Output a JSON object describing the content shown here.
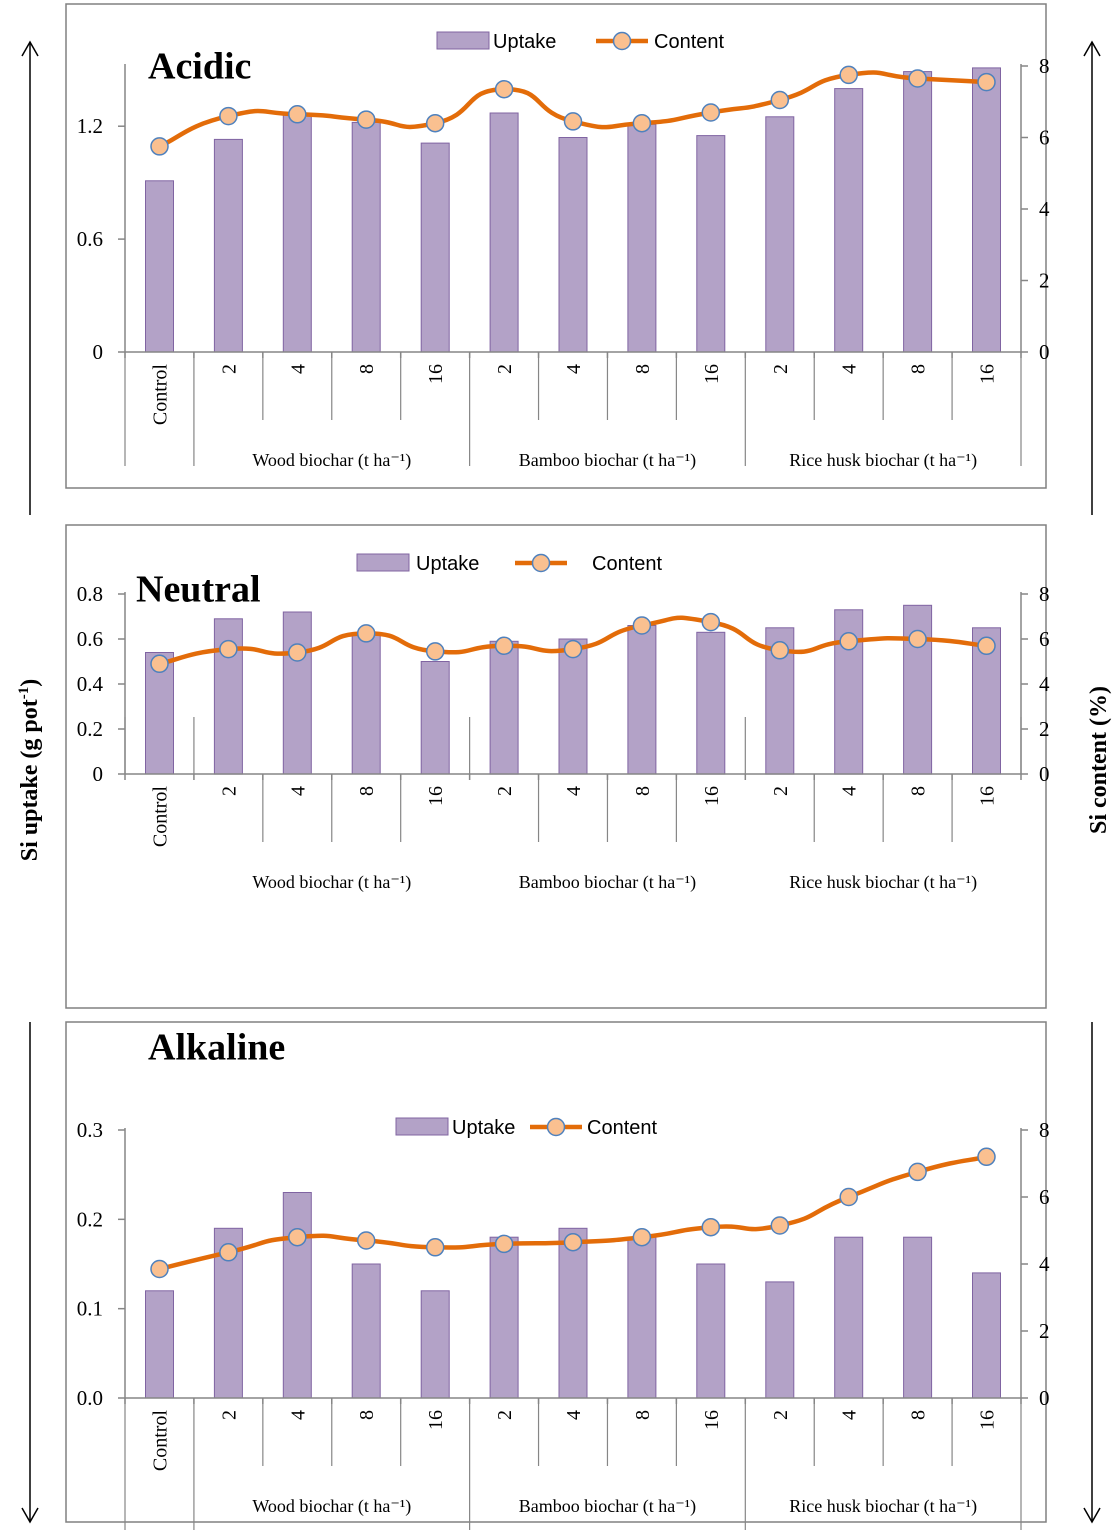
{
  "figure": {
    "left_axis_label": "Si uptake (g pot",
    "left_axis_sup": "-1",
    "left_axis_close": ")",
    "right_axis_label": "Si content (%)",
    "legend_uptake": "Uptake",
    "legend_content": "Content",
    "colors": {
      "bar_fill": "#b3a2c7",
      "bar_stroke": "#8064a2",
      "line": "#e36c09",
      "marker_fill": "#fac090",
      "marker_stroke": "#4f81bd"
    }
  },
  "chart_data": [
    {
      "type": "bar",
      "title": "Acidic",
      "categories": [
        "Control",
        "2",
        "4",
        "8",
        "16",
        "2",
        "4",
        "8",
        "16",
        "2",
        "4",
        "8",
        "16"
      ],
      "groups": [
        {
          "label": "",
          "span": 1
        },
        {
          "label": "Wood biochar (t ha⁻¹)",
          "span": 4
        },
        {
          "label": "Bamboo biochar (t ha⁻¹)",
          "span": 4
        },
        {
          "label": "Rice husk biochar (t ha⁻¹)",
          "span": 4
        }
      ],
      "series": [
        {
          "name": "Uptake",
          "axis": "left",
          "values": [
            0.91,
            1.13,
            1.26,
            1.22,
            1.11,
            1.27,
            1.14,
            1.21,
            1.15,
            1.25,
            1.4,
            1.49,
            1.51
          ]
        },
        {
          "name": "Content",
          "axis": "right",
          "values": [
            5.75,
            6.6,
            6.65,
            6.5,
            6.4,
            7.35,
            6.45,
            6.4,
            6.7,
            7.05,
            7.75,
            7.65,
            7.55
          ]
        }
      ],
      "left_ticks": [
        "0",
        "0.6",
        "1.2"
      ],
      "left_tick_values": [
        0,
        0.6,
        1.2
      ],
      "ylim_left": [
        0,
        1.52
      ],
      "right_ticks": [
        "0",
        "2",
        "4",
        "6",
        "8"
      ],
      "right_tick_values": [
        0,
        2,
        4,
        6,
        8
      ],
      "ylim_right": [
        0,
        8
      ]
    },
    {
      "type": "bar",
      "title": "Neutral",
      "categories": [
        "Control",
        "2",
        "4",
        "8",
        "16",
        "2",
        "4",
        "8",
        "16",
        "2",
        "4",
        "8",
        "16"
      ],
      "groups": [
        {
          "label": "",
          "span": 1
        },
        {
          "label": "Wood biochar (t ha⁻¹)",
          "span": 4
        },
        {
          "label": "Bamboo biochar (t ha⁻¹)",
          "span": 4
        },
        {
          "label": "Rice husk biochar (t ha⁻¹)",
          "span": 4
        }
      ],
      "series": [
        {
          "name": "Uptake",
          "axis": "left",
          "values": [
            0.54,
            0.69,
            0.72,
            0.62,
            0.5,
            0.59,
            0.6,
            0.66,
            0.63,
            0.65,
            0.73,
            0.75,
            0.65
          ]
        },
        {
          "name": "Content",
          "axis": "right",
          "values": [
            4.9,
            5.55,
            5.4,
            6.25,
            5.45,
            5.7,
            5.55,
            6.6,
            6.75,
            5.5,
            5.9,
            6.0,
            5.7
          ]
        }
      ],
      "left_ticks": [
        "0",
        "0.2",
        "0.4",
        "0.6",
        "0.8"
      ],
      "left_tick_values": [
        0,
        0.2,
        0.4,
        0.6,
        0.8
      ],
      "ylim_left": [
        0,
        0.8
      ],
      "right_ticks": [
        "0",
        "2",
        "4",
        "6",
        "8"
      ],
      "right_tick_values": [
        0,
        2,
        4,
        6,
        8
      ],
      "ylim_right": [
        0,
        8
      ]
    },
    {
      "type": "bar",
      "title": "Alkaline",
      "categories": [
        "Control",
        "2",
        "4",
        "8",
        "16",
        "2",
        "4",
        "8",
        "16",
        "2",
        "4",
        "8",
        "16"
      ],
      "groups": [
        {
          "label": "",
          "span": 1
        },
        {
          "label": "Wood biochar (t ha⁻¹)",
          "span": 4
        },
        {
          "label": "Bamboo biochar (t ha⁻¹)",
          "span": 4
        },
        {
          "label": "Rice husk biochar (t ha⁻¹)",
          "span": 4
        }
      ],
      "series": [
        {
          "name": "Uptake",
          "axis": "left",
          "values": [
            0.12,
            0.19,
            0.23,
            0.15,
            0.12,
            0.18,
            0.19,
            0.18,
            0.15,
            0.13,
            0.18,
            0.18,
            0.14
          ]
        },
        {
          "name": "Content",
          "axis": "right",
          "values": [
            3.85,
            4.35,
            4.8,
            4.7,
            4.5,
            4.6,
            4.65,
            4.8,
            5.1,
            5.15,
            6.0,
            6.75,
            7.2
          ]
        }
      ],
      "left_ticks": [
        "0.0",
        "0.1",
        "0.2",
        "0.3"
      ],
      "left_tick_values": [
        0,
        0.1,
        0.2,
        0.3
      ],
      "ylim_left": [
        0,
        0.3
      ],
      "right_ticks": [
        "0",
        "2",
        "4",
        "6",
        "8"
      ],
      "right_tick_values": [
        0,
        2,
        4,
        6,
        8
      ],
      "ylim_right": [
        0,
        8
      ]
    }
  ]
}
